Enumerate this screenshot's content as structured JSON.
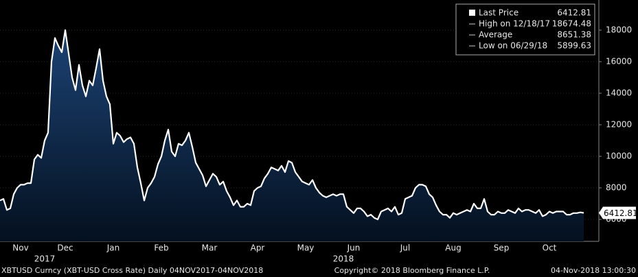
{
  "chart_data": {
    "type": "area",
    "color": "#ffffff",
    "fill_top": "#1c4375",
    "fill_bottom": "#04101f",
    "ylim": [
      4610,
      19910
    ],
    "yticks": [
      6000,
      8000,
      10000,
      12000,
      14000,
      16000,
      18000
    ],
    "grid": true,
    "categories": [
      null,
      null,
      null,
      null,
      null,
      null,
      "Nov",
      null,
      null,
      null,
      null,
      null,
      null,
      null,
      null,
      null,
      null,
      null,
      null,
      "Dec",
      null,
      null,
      null,
      null,
      null,
      null,
      null,
      null,
      null,
      null,
      null,
      null,
      null,
      "Jan",
      null,
      null,
      null,
      null,
      null,
      null,
      null,
      null,
      null,
      null,
      null,
      null,
      null,
      "Feb",
      null,
      null,
      null,
      null,
      null,
      null,
      null,
      null,
      null,
      null,
      null,
      null,
      null,
      "Mar",
      null,
      null,
      null,
      null,
      null,
      null,
      null,
      null,
      null,
      null,
      null,
      null,
      null,
      "Apr",
      null,
      null,
      null,
      null,
      null,
      null,
      null,
      null,
      null,
      null,
      null,
      null,
      null,
      "May",
      null,
      null,
      null,
      null,
      null,
      null,
      null,
      null,
      null,
      null,
      null,
      null,
      null,
      "Jun",
      null,
      null,
      null,
      null,
      null,
      null,
      null,
      null,
      null,
      null,
      null,
      null,
      null,
      null,
      "Jul",
      null,
      null,
      null,
      null,
      null,
      null,
      null,
      null,
      null,
      null,
      null,
      null,
      null,
      "Aug",
      null,
      null,
      null,
      null,
      null,
      null,
      null,
      null,
      null,
      null,
      null,
      null,
      null,
      "Sep",
      null,
      null,
      null,
      null,
      null,
      null,
      null,
      null,
      null,
      null,
      null,
      null,
      null,
      "Oct",
      null,
      null,
      null,
      null,
      null,
      null,
      null,
      null,
      null,
      null
    ],
    "year_categories": [
      null,
      null,
      null,
      null,
      null,
      null,
      null,
      null,
      null,
      null,
      null,
      null,
      null,
      "2017",
      null,
      null,
      null,
      null,
      null,
      null,
      null,
      null,
      null,
      null,
      null,
      null,
      null,
      null,
      null,
      null,
      null,
      null,
      null,
      null,
      null,
      null,
      null,
      null,
      null,
      null,
      null,
      null,
      null,
      null,
      null,
      null,
      null,
      null,
      null,
      null,
      null,
      null,
      null,
      null,
      null,
      null,
      null,
      null,
      null,
      null,
      null,
      null,
      null,
      null,
      null,
      null,
      null,
      null,
      null,
      null,
      null,
      null,
      null,
      null,
      null,
      null,
      null,
      null,
      null,
      null,
      null,
      null,
      null,
      null,
      null,
      null,
      null,
      null,
      null,
      null,
      null,
      null,
      null,
      null,
      null,
      null,
      null,
      null,
      null,
      null,
      "2018",
      null,
      null,
      null,
      null,
      null,
      null,
      null,
      null,
      null,
      null,
      null,
      null,
      null,
      null,
      null,
      null,
      null,
      null,
      null,
      null,
      null,
      null,
      null,
      null,
      null,
      null,
      null,
      null,
      null,
      null,
      null,
      null,
      null,
      null,
      null,
      null,
      null,
      null,
      null,
      null,
      null,
      null,
      null,
      null,
      null,
      null,
      null,
      null,
      null,
      null,
      null,
      null,
      null,
      null,
      null,
      null,
      null,
      null,
      null,
      null,
      null,
      null,
      null,
      null,
      null,
      null,
      null,
      null,
      null
    ],
    "values": [
      7200,
      7300,
      6600,
      6700,
      7600,
      8000,
      8200,
      8200,
      8300,
      8300,
      9800,
      10100,
      9900,
      11000,
      11500,
      16000,
      17500,
      17000,
      16600,
      18000,
      16500,
      15000,
      14200,
      15800,
      14500,
      13800,
      14800,
      14500,
      15600,
      16800,
      14800,
      13800,
      13300,
      10800,
      11500,
      11300,
      10900,
      11100,
      11200,
      10800,
      9300,
      8300,
      7200,
      8000,
      8300,
      8700,
      9500,
      10000,
      11000,
      11700,
      10300,
      10000,
      10800,
      10700,
      11000,
      11500,
      10600,
      9600,
      9200,
      8800,
      8100,
      8500,
      8900,
      8700,
      8200,
      8400,
      7800,
      7400,
      6900,
      7200,
      6800,
      6800,
      7000,
      6900,
      7800,
      8000,
      8100,
      8600,
      8900,
      9300,
      9200,
      9100,
      9400,
      9000,
      9700,
      9600,
      9000,
      8700,
      8400,
      8300,
      8200,
      8500,
      8000,
      7700,
      7500,
      7400,
      7500,
      7600,
      7500,
      7600,
      7600,
      6800,
      6600,
      6400,
      6700,
      6700,
      6500,
      6200,
      6300,
      6100,
      6000,
      6500,
      6600,
      6700,
      6500,
      6800,
      6300,
      6400,
      7300,
      7400,
      7500,
      8000,
      8200,
      8200,
      8100,
      7600,
      7400,
      6900,
      6500,
      6300,
      6300,
      6100,
      6400,
      6300,
      6400,
      6500,
      6600,
      6500,
      7000,
      6700,
      6700,
      7300,
      6500,
      6300,
      6300,
      6500,
      6400,
      6400,
      6600,
      6500,
      6400,
      6700,
      6500,
      6600,
      6600,
      6500,
      6400,
      6600,
      6200,
      6300,
      6500,
      6400,
      6500,
      6500,
      6500,
      6300,
      6300,
      6400,
      6400,
      6450,
      6412.81
    ],
    "legend": {
      "items": [
        {
          "label": "Last Price",
          "value": "6412.81"
        },
        {
          "label": "High on 12/18/17",
          "value": "18674.48"
        },
        {
          "label": "Average",
          "value": "8651.38"
        },
        {
          "label": "Low on 06/29/18",
          "value": "5899.63"
        }
      ]
    },
    "footer": {
      "left": "XBTUSD Curncy (XBT-USD Cross Rate)  Daily 04NOV2017-04NOV2018",
      "center": "Copyright© 2018 Bloomberg Finance L.P.",
      "right": "04-Nov-2018 13:00:30"
    }
  }
}
